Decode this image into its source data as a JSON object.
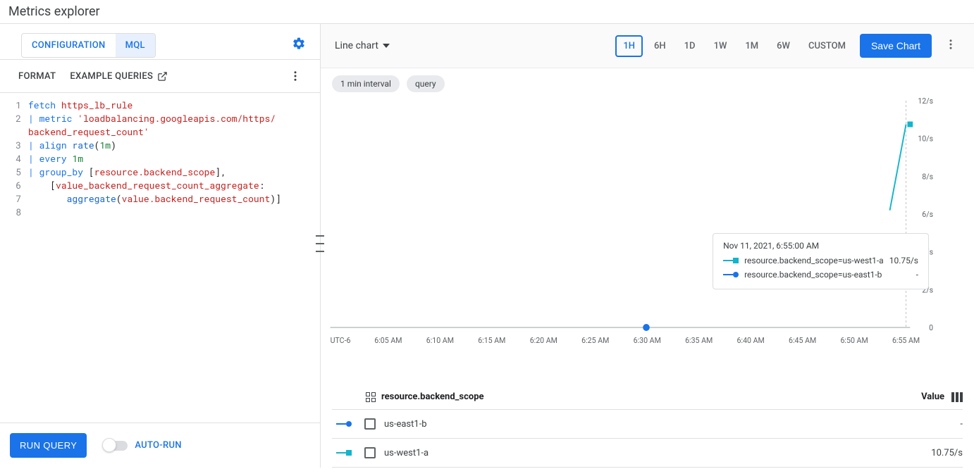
{
  "title": "Metrics explorer",
  "left": {
    "tabs": {
      "configuration": "CONFIGURATION",
      "mql": "MQL"
    },
    "subbar": {
      "format": "FORMAT",
      "examples": "EXAMPLE QUERIES"
    },
    "code": {
      "line_numbers": [
        "1",
        "2",
        "3",
        "4",
        "5",
        "6",
        "7",
        "8"
      ],
      "tokens": {
        "fetch": "fetch",
        "resource": "https_lb_rule",
        "pipe": "|",
        "metric": "metric",
        "metric_str": "'loadbalancing.googleapis.com/https/backend_request_count'",
        "align": "align",
        "rate": "rate",
        "one_m": "1m",
        "every": "every",
        "group_by": "group_by",
        "scope": "resource.backend_scope",
        "agg_label": "value_backend_request_count_aggregate",
        "aggregate": "aggregate",
        "agg_arg": "value.backend_request_count"
      }
    },
    "run_button": "RUN QUERY",
    "auto_run": "AUTO-RUN"
  },
  "toolbar": {
    "chart_type": "Line chart",
    "time_ranges": [
      "1H",
      "6H",
      "1D",
      "1W",
      "1M",
      "6W",
      "CUSTOM"
    ],
    "active_range": "1H",
    "save": "Save Chart"
  },
  "chips": {
    "interval": "1 min interval",
    "query": "query"
  },
  "chart": {
    "y_ticks": [
      "12/s",
      "10/s",
      "8/s",
      "6/s",
      "4/s",
      "2/s",
      "0"
    ],
    "y_max": 12,
    "x_label": "UTC-6",
    "x_ticks": [
      "6:05 AM",
      "6:10 AM",
      "6:15 AM",
      "6:20 AM",
      "6:25 AM",
      "6:30 AM",
      "6:35 AM",
      "6:40 AM",
      "6:45 AM",
      "6:50 AM",
      "6:55 AM"
    ],
    "scrubber_x_ratio": 0.545,
    "last_tick_line_ratio": 0.993,
    "series": [
      {
        "name": "us-west1-a",
        "color": "#12b5cb",
        "marker": "square",
        "points": [
          {
            "x": 0.965,
            "y": 6.2
          },
          {
            "x": 0.993,
            "y": 10.75
          }
        ]
      }
    ],
    "colors": {
      "axis": "#9aa0a6",
      "grid": "#e8eaed",
      "bg": "#ffffff",
      "scrubber": "#1a73e8"
    }
  },
  "tooltip": {
    "timestamp": "Nov 11, 2021, 6:55:00 AM",
    "rows": [
      {
        "color": "#12b5cb",
        "marker": "square",
        "label": "resource.backend_scope=us-west1-a",
        "value": "10.75/s"
      },
      {
        "color": "#1a73e8",
        "marker": "circle",
        "label": "resource.backend_scope=us-east1-b",
        "value": "-"
      }
    ]
  },
  "legend": {
    "group_label": "resource.backend_scope",
    "value_label": "Value",
    "rows": [
      {
        "color": "#1a73e8",
        "marker": "circle",
        "label": "us-east1-b",
        "value": "-"
      },
      {
        "color": "#12b5cb",
        "marker": "square",
        "label": "us-west1-a",
        "value": "10.75/s"
      }
    ]
  }
}
